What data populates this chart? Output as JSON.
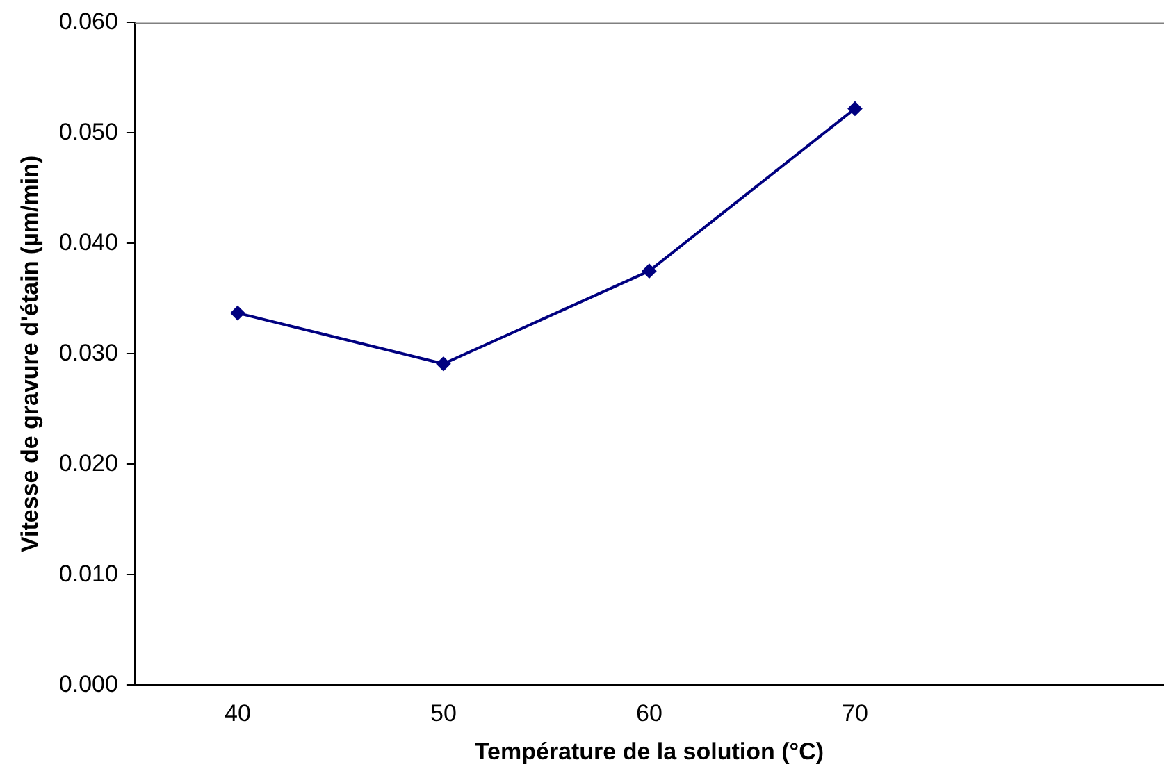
{
  "chart_data": {
    "type": "line",
    "xlabel": "Température de la solution (°C)",
    "ylabel": "Vitesse de gravure d'étain (µm/min)",
    "categories": [
      "40",
      "50",
      "60",
      "70",
      null
    ],
    "series": [
      {
        "color": "#000080",
        "values": [
          0.0337,
          0.0291,
          0.0375,
          0.0522,
          null
        ]
      }
    ],
    "ylim": [
      0,
      0.06
    ],
    "yticks": [
      {
        "value": 0,
        "label": "0.000"
      },
      {
        "value": 0.01,
        "label": "0.010"
      },
      {
        "value": 0.02,
        "label": "0.020"
      },
      {
        "value": 0.03,
        "label": "0.030"
      },
      {
        "value": 0.04,
        "label": "0.040"
      },
      {
        "value": 0.05,
        "label": "0.050"
      },
      {
        "value": 0.06,
        "label": "0.060"
      }
    ],
    "grid": false,
    "legend": false,
    "marker": "diamond",
    "line_style": "solid"
  }
}
